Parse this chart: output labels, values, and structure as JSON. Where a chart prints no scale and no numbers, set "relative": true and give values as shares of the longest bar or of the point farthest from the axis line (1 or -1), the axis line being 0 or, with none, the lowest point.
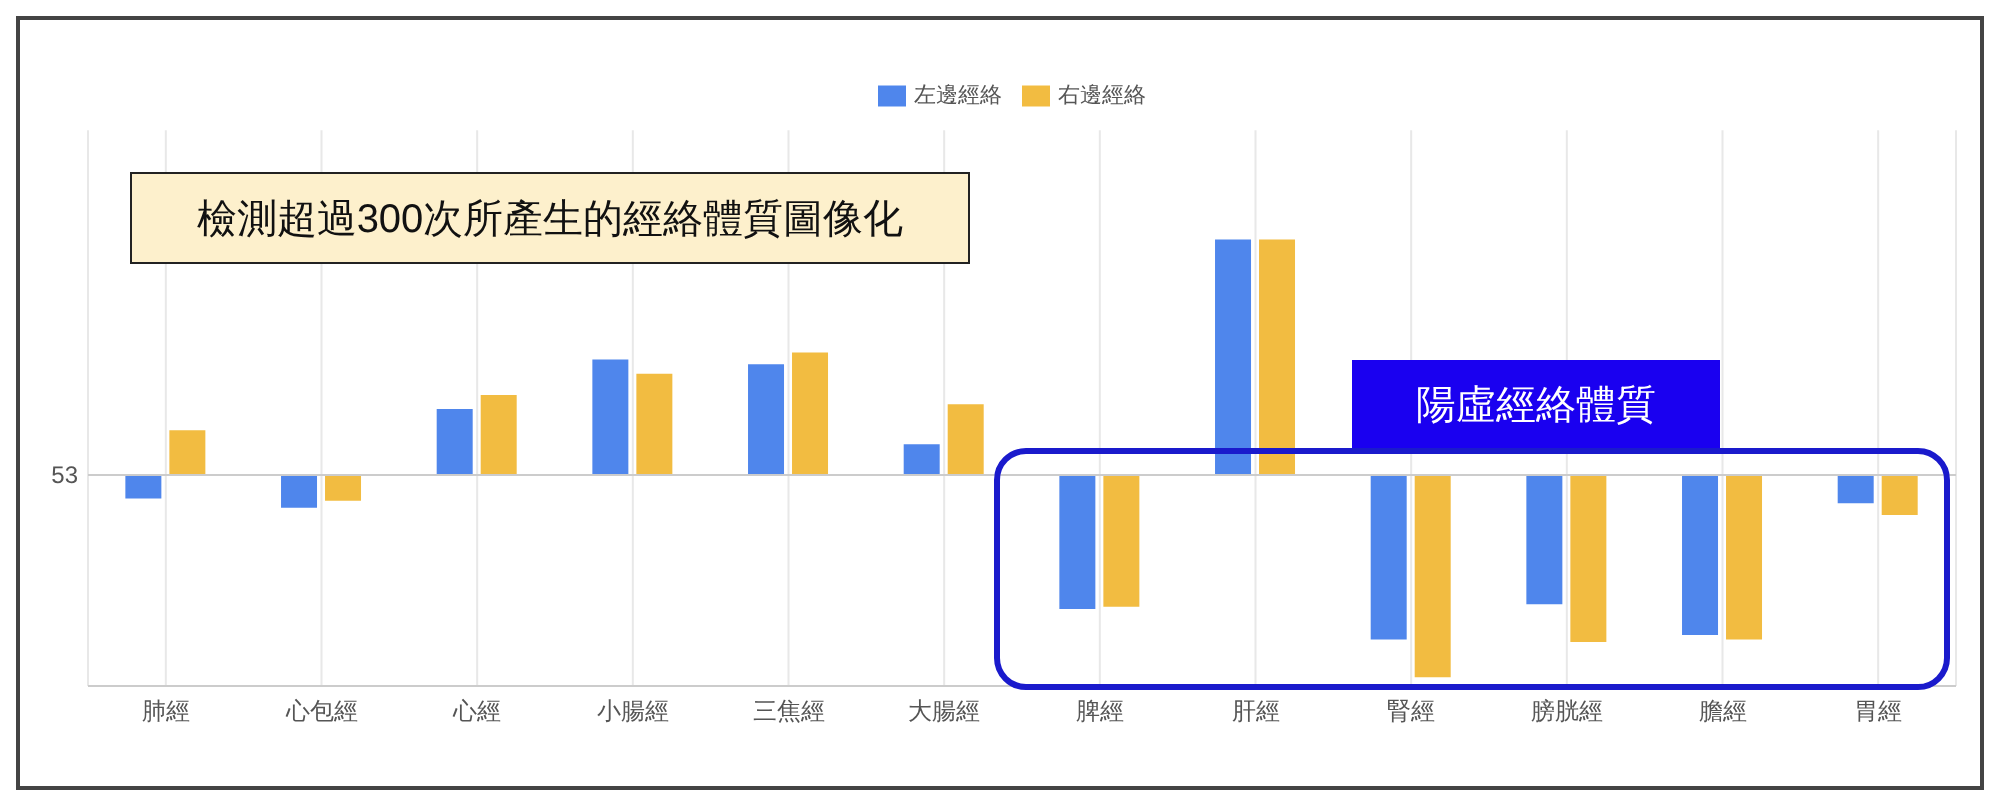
{
  "chart_data": {
    "type": "bar",
    "title": "檢測超過300次所產生的經絡體質圖像化",
    "relative": true,
    "categories": [
      "肺經",
      "心包經",
      "心經",
      "小腸經",
      "三焦經",
      "大腸經",
      "脾經",
      "肝經",
      "腎經",
      "膀胱經",
      "膽經",
      "胃經"
    ],
    "series": [
      {
        "name": "左邊經絡",
        "color": "#4f86ec",
        "values": [
          -0.1,
          -0.14,
          0.28,
          0.49,
          0.47,
          0.13,
          -0.57,
          1,
          -0.7,
          -0.55,
          -0.68,
          -0.12
        ]
      },
      {
        "name": "右邊經絡",
        "color": "#f2bc41",
        "values": [
          0.19,
          -0.11,
          0.34,
          0.43,
          0.52,
          0.3,
          -0.56,
          1,
          -0.86,
          -0.71,
          -0.7,
          -0.17
        ]
      }
    ],
    "ref_lines": [
      {
        "axis": "y",
        "value": 0,
        "color": "#cccccc"
      }
    ],
    "annotations": [
      "53",
      "陽虛經絡體質"
    ],
    "grid": "x",
    "legend": "top"
  }
}
